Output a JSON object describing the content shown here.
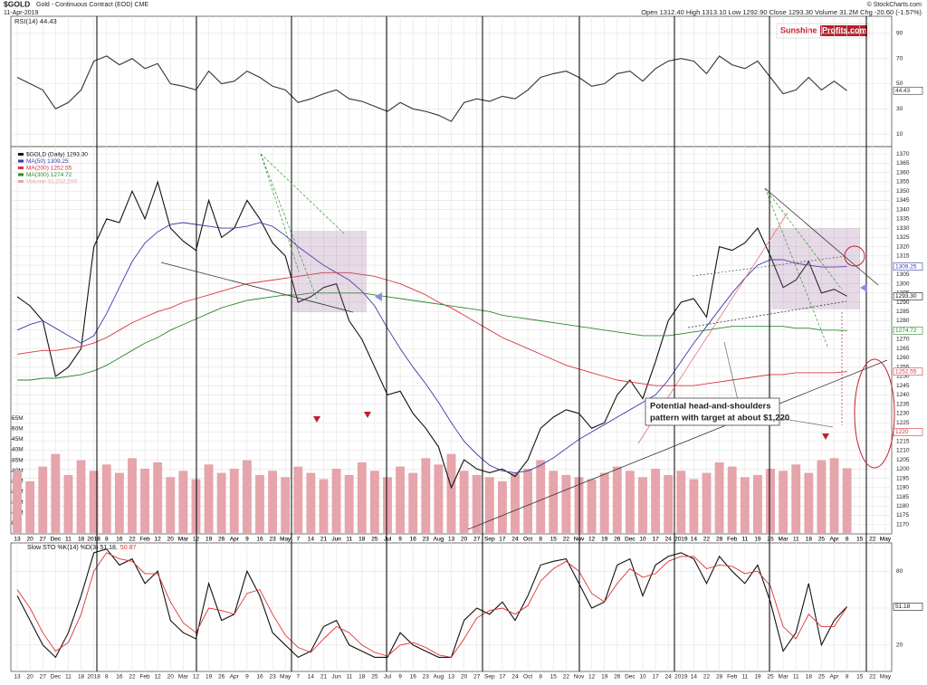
{
  "header": {
    "symbol": "$GOLD",
    "name": "Gold - Continuous Contract (EOD) CME",
    "date": "11-Apr-2019",
    "copyright": "© StockCharts.com",
    "quote": "Open 1312.40 High 1313.10 Low 1292.90 Close 1293.30 Volume 31.2M Chg -20.60 (-1.57%)",
    "logo": [
      "Sunshine",
      "Profits.com"
    ]
  },
  "chart_data": [
    {
      "type": "line",
      "ylim": [
        0,
        100
      ],
      "yticks": [
        10,
        30,
        50,
        70,
        90
      ],
      "grid": true,
      "series": [
        {
          "name": "RSI(14) 44.43",
          "color": "#333333",
          "values": [
            55,
            50,
            45,
            30,
            35,
            45,
            68,
            72,
            65,
            70,
            62,
            66,
            50,
            48,
            45,
            60,
            50,
            52,
            60,
            55,
            48,
            45,
            35,
            38,
            42,
            45,
            38,
            36,
            32,
            28,
            35,
            30,
            28,
            25,
            20,
            35,
            38,
            36,
            40,
            38,
            45,
            55,
            58,
            60,
            55,
            48,
            50,
            58,
            60,
            52,
            62,
            68,
            70,
            68,
            58,
            72,
            65,
            62,
            68,
            55,
            42,
            45,
            55,
            45,
            52,
            44.43,
            null,
            null,
            null
          ]
        }
      ],
      "right_labels": [
        {
          "value": 44.43,
          "label": "44.43",
          "color": "#333333"
        }
      ]
    },
    {
      "type": "line",
      "ylim": [
        1165,
        1375
      ],
      "grid": true,
      "yticks": [
        1170,
        1175,
        1180,
        1185,
        1190,
        1195,
        1200,
        1205,
        1210,
        1215,
        1220,
        1225,
        1230,
        1235,
        1240,
        1245,
        1250,
        1255,
        1260,
        1265,
        1270,
        1275,
        1280,
        1285,
        1290,
        1295,
        1300,
        1305,
        1310,
        1315,
        1320,
        1325,
        1330,
        1335,
        1340,
        1345,
        1350,
        1355,
        1360,
        1365,
        1370
      ],
      "y2lim": [
        0,
        185000000
      ],
      "y2ticks": [
        {
          "value": 5000000,
          "label": "5M"
        },
        {
          "value": 10000000,
          "label": "10M"
        },
        {
          "value": 15000000,
          "label": "15M"
        },
        {
          "value": 20000000,
          "label": "20M"
        },
        {
          "value": 25000000,
          "label": "25M"
        },
        {
          "value": 30000000,
          "label": "30M"
        },
        {
          "value": 35000000,
          "label": "35M"
        },
        {
          "value": 40000000,
          "label": "40M"
        },
        {
          "value": 45000000,
          "label": "45M"
        },
        {
          "value": 50000000,
          "label": "50M"
        },
        {
          "value": 55000000,
          "label": "55M"
        }
      ],
      "categories": [
        "13",
        "20",
        "27",
        "Dec",
        "11",
        "18",
        "2018",
        "8",
        "16",
        "22",
        "Feb",
        "12",
        "20",
        "Mar",
        "12",
        "19",
        "26",
        "Apr",
        "9",
        "16",
        "23",
        "May",
        "7",
        "14",
        "21",
        "Jun",
        "11",
        "18",
        "25",
        "Jul",
        "9",
        "16",
        "23",
        "Aug",
        "13",
        "20",
        "27",
        "Sep",
        "17",
        "24",
        "Oct",
        "8",
        "15",
        "22",
        "Nov",
        "12",
        "19",
        "26",
        "Dec",
        "10",
        "17",
        "24",
        "2019",
        "14",
        "22",
        "28",
        "Feb",
        "11",
        "19",
        "25",
        "Mar",
        "11",
        "18",
        "25",
        "Apr",
        "8",
        "15",
        "22",
        "May"
      ],
      "series": [
        {
          "name": "$GOLD (Daily) 1293.30",
          "color": "#111111",
          "values": [
            1293,
            1288,
            1280,
            1250,
            1255,
            1265,
            1320,
            1335,
            1333,
            1350,
            1335,
            1355,
            1330,
            1323,
            1318,
            1345,
            1325,
            1330,
            1345,
            1335,
            1322,
            1315,
            1290,
            1293,
            1298,
            1300,
            1280,
            1270,
            1255,
            1240,
            1242,
            1230,
            1222,
            1212,
            1190,
            1205,
            1200,
            1198,
            1200,
            1196,
            1205,
            1222,
            1228,
            1232,
            1230,
            1222,
            1225,
            1240,
            1248,
            1238,
            1258,
            1280,
            1290,
            1292,
            1282,
            1320,
            1318,
            1322,
            1330,
            1315,
            1298,
            1302,
            1312,
            1295,
            1297,
            1293.3,
            null,
            null,
            null
          ]
        },
        {
          "name": "MA(50) 1309.25",
          "color": "#3a3aa8",
          "values": [
            1275,
            1278,
            1280,
            1276,
            1272,
            1268,
            1272,
            1284,
            1298,
            1312,
            1322,
            1328,
            1332,
            1333,
            1332,
            1331,
            1330,
            1330,
            1331,
            1333,
            1331,
            1326,
            1320,
            1315,
            1310,
            1306,
            1302,
            1296,
            1288,
            1276,
            1265,
            1255,
            1246,
            1236,
            1225,
            1215,
            1208,
            1202,
            1199,
            1198,
            1199,
            1202,
            1206,
            1211,
            1216,
            1220,
            1224,
            1228,
            1232,
            1236,
            1240,
            1248,
            1258,
            1268,
            1277,
            1286,
            1295,
            1303,
            1310,
            1313,
            1313,
            1311,
            1310,
            1309,
            1309,
            1309.25,
            null,
            null,
            null
          ]
        },
        {
          "name": "MA(200) 1252.55",
          "color": "#d9343f",
          "values": [
            1262,
            1263,
            1264,
            1264,
            1265,
            1266,
            1268,
            1271,
            1275,
            1279,
            1282,
            1285,
            1287,
            1290,
            1292,
            1294,
            1296,
            1298,
            1300,
            1301,
            1302,
            1303,
            1304,
            1305,
            1306,
            1306,
            1306,
            1305,
            1304,
            1302,
            1300,
            1297,
            1294,
            1290,
            1287,
            1283,
            1279,
            1275,
            1271,
            1268,
            1265,
            1262,
            1259,
            1256,
            1254,
            1252,
            1250,
            1248,
            1247,
            1246,
            1245,
            1245,
            1245,
            1245,
            1246,
            1247,
            1248,
            1249,
            1250,
            1251,
            1251,
            1252,
            1252,
            1252,
            1252,
            1252.55,
            null,
            null,
            null
          ]
        },
        {
          "name": "MA(300) 1274.72",
          "color": "#2a8a2a",
          "values": [
            1248,
            1248,
            1249,
            1249,
            1250,
            1251,
            1253,
            1256,
            1260,
            1264,
            1268,
            1271,
            1275,
            1278,
            1281,
            1284,
            1287,
            1289,
            1291,
            1292,
            1293,
            1294,
            1294,
            1295,
            1295,
            1295,
            1295,
            1295,
            1294,
            1293,
            1292,
            1291,
            1290,
            1289,
            1288,
            1287,
            1286,
            1285,
            1283,
            1282,
            1281,
            1280,
            1279,
            1278,
            1277,
            1276,
            1275,
            1274,
            1273,
            1272,
            1272,
            1272,
            1273,
            1274,
            1275,
            1276,
            1277,
            1277,
            1277,
            1277,
            1277,
            1276,
            1276,
            1275,
            1275,
            1274.72,
            null,
            null,
            null
          ]
        },
        {
          "name": "Volume 31,232,200",
          "color": "#e6a4ab",
          "type": "bar",
          "axis": "y2",
          "values": [
            30000000,
            25000000,
            32000000,
            38000000,
            28000000,
            35000000,
            30000000,
            33000000,
            29000000,
            36000000,
            31000000,
            34000000,
            27000000,
            30000000,
            26000000,
            33000000,
            29000000,
            31000000,
            35000000,
            28000000,
            30000000,
            27000000,
            32000000,
            29000000,
            26000000,
            31000000,
            28000000,
            34000000,
            30000000,
            27000000,
            32000000,
            29000000,
            36000000,
            33000000,
            38000000,
            30000000,
            28000000,
            27000000,
            25000000,
            29000000,
            31000000,
            35000000,
            30000000,
            28000000,
            27000000,
            26000000,
            29000000,
            32000000,
            30000000,
            27000000,
            31000000,
            28000000,
            30000000,
            26000000,
            29000000,
            34000000,
            32000000,
            27000000,
            28000000,
            31000000,
            30000000,
            33000000,
            29000000,
            35000000,
            36000000,
            31232200,
            null,
            null,
            null
          ]
        }
      ],
      "right_labels": [
        {
          "value": 1309.25,
          "label": "1309.25",
          "color": "#3a3aa8"
        },
        {
          "value": 1293.3,
          "label": "1293.30",
          "color": "#111111"
        },
        {
          "value": 1274.72,
          "label": "1274.72",
          "color": "#2a8a2a"
        },
        {
          "value": 1252.55,
          "label": "1252.55",
          "color": "#d9343f"
        },
        {
          "value": 1220,
          "label": "1220",
          "color": "#d9343f"
        }
      ],
      "annotation": [
        "Potential head-and-shoulders",
        "pattern with target at about $1,220"
      ]
    },
    {
      "type": "line",
      "ylim": [
        0,
        100
      ],
      "yticks": [
        20,
        50,
        80
      ],
      "grid": true,
      "categories": [
        "13",
        "20",
        "27",
        "Dec",
        "11",
        "18",
        "2018",
        "8",
        "16",
        "22",
        "Feb",
        "12",
        "20",
        "Mar",
        "12",
        "19",
        "26",
        "Apr",
        "9",
        "16",
        "23",
        "May",
        "7",
        "14",
        "21",
        "Jun",
        "11",
        "18",
        "25",
        "Jul",
        "9",
        "16",
        "23",
        "Aug",
        "13",
        "20",
        "27",
        "Sep",
        "17",
        "24",
        "Oct",
        "8",
        "15",
        "22",
        "Nov",
        "12",
        "19",
        "26",
        "Dec",
        "10",
        "17",
        "24",
        "2019",
        "14",
        "22",
        "28",
        "Feb",
        "11",
        "19",
        "25",
        "Mar",
        "11",
        "18",
        "25",
        "Apr",
        "8",
        "15",
        "22",
        "May"
      ],
      "series": [
        {
          "name": "Slow STO %K(14) %D(3) 51.18,",
          "color": "#111111",
          "values": [
            60,
            40,
            20,
            10,
            30,
            60,
            95,
            98,
            85,
            90,
            70,
            80,
            40,
            30,
            25,
            70,
            40,
            45,
            80,
            60,
            30,
            20,
            10,
            15,
            35,
            40,
            20,
            15,
            10,
            10,
            30,
            20,
            15,
            10,
            10,
            40,
            50,
            45,
            55,
            40,
            60,
            85,
            88,
            90,
            70,
            50,
            55,
            85,
            90,
            60,
            85,
            92,
            95,
            90,
            70,
            92,
            80,
            70,
            85,
            55,
            15,
            30,
            70,
            20,
            40,
            51.18,
            null,
            null,
            null
          ]
        },
        {
          "name": "50.87",
          "color": "#e03030",
          "values": [
            65,
            50,
            30,
            15,
            22,
            45,
            80,
            95,
            90,
            88,
            78,
            78,
            55,
            38,
            30,
            50,
            48,
            45,
            62,
            65,
            45,
            28,
            18,
            14,
            25,
            35,
            30,
            20,
            14,
            11,
            20,
            22,
            18,
            12,
            10,
            25,
            42,
            48,
            50,
            45,
            52,
            72,
            82,
            88,
            80,
            62,
            55,
            70,
            82,
            75,
            78,
            88,
            92,
            92,
            82,
            85,
            84,
            78,
            80,
            68,
            35,
            25,
            45,
            35,
            35,
            50.87,
            null,
            null,
            null
          ]
        }
      ],
      "right_labels": [
        {
          "value": 51.18,
          "label": "51.18",
          "color": "#111111"
        }
      ]
    }
  ]
}
